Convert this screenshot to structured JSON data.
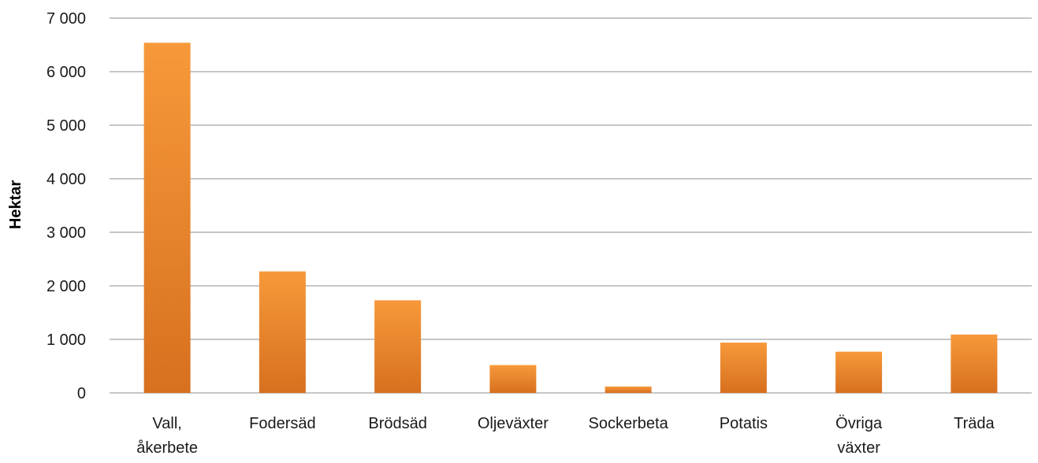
{
  "chart_data": {
    "type": "bar",
    "title": "",
    "xlabel": "",
    "ylabel": "Hektar",
    "ylim": [
      0,
      7000
    ],
    "yticks": [
      {
        "value": 0,
        "label": "0"
      },
      {
        "value": 1000,
        "label": "1 000"
      },
      {
        "value": 2000,
        "label": "2 000"
      },
      {
        "value": 3000,
        "label": "3 000"
      },
      {
        "value": 4000,
        "label": "4 000"
      },
      {
        "value": 5000,
        "label": "5 000"
      },
      {
        "value": 6000,
        "label": "6 000"
      },
      {
        "value": 7000,
        "label": "7 000"
      }
    ],
    "categories": [
      "Vall, åkerbete",
      "Fodersäd",
      "Brödsäd",
      "Oljeväxter",
      "Sockerbeta",
      "Potatis",
      "Övriga växter",
      "Träda"
    ],
    "category_label_lines": [
      [
        "Vall,",
        "åkerbete"
      ],
      [
        "Fodersäd"
      ],
      [
        "Brödsäd"
      ],
      [
        "Oljeväxter"
      ],
      [
        "Sockerbeta"
      ],
      [
        "Potatis"
      ],
      [
        "Övriga",
        "växter"
      ],
      [
        "Träda"
      ]
    ],
    "values": [
      6540,
      2270,
      1730,
      520,
      120,
      940,
      770,
      1090
    ],
    "grid": true,
    "legend": "none",
    "colors": {
      "bar_top": "#f7993a",
      "bar_bottom": "#d7701f",
      "grid": "#8c8c8c",
      "axis": "#8c8c8c",
      "text": "#1a1a1a"
    }
  }
}
